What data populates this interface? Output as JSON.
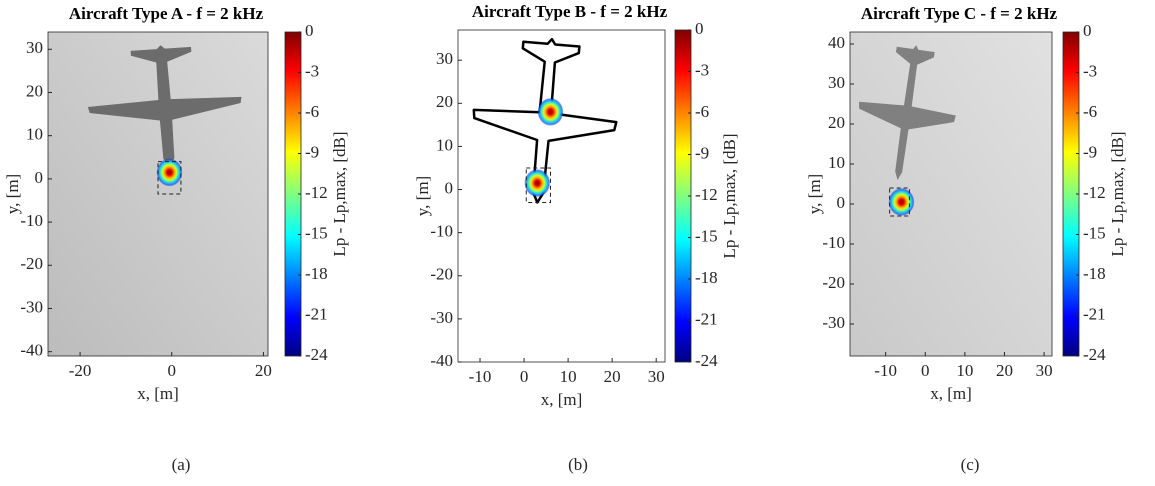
{
  "chart_data": [
    {
      "type": "heatmap",
      "title": "Aircraft Type A - f = 2 kHz",
      "xlabel": "x, [m]",
      "ylabel": "y, [m]",
      "xlim": [
        -27,
        21
      ],
      "ylim": [
        -41,
        34
      ],
      "xticks": [
        -20,
        0,
        20
      ],
      "yticks": [
        -40,
        -30,
        -20,
        -10,
        0,
        10,
        20,
        30
      ],
      "x": [
        -0.5
      ],
      "y": [
        1.5
      ],
      "values": [
        0
      ],
      "box_x": [
        -3,
        2
      ],
      "box_y": [
        -3.5,
        4
      ],
      "colorbar_label": "Lp - Lp,max, [dB]",
      "clim": [
        -24,
        0
      ],
      "cticks": [
        0,
        -3,
        -6,
        -9,
        -12,
        -15,
        -18,
        -21,
        -24
      ],
      "background": "#bcbcbc",
      "caption": "(a)"
    },
    {
      "type": "heatmap",
      "title": "Aircraft Type B - f = 2 kHz",
      "xlabel": "x, [m]",
      "ylabel": "y, [m]",
      "xlim": [
        -15,
        32
      ],
      "ylim": [
        -40,
        37
      ],
      "xticks": [
        -10,
        0,
        10,
        20,
        30
      ],
      "yticks": [
        -40,
        -30,
        -20,
        -10,
        0,
        10,
        20,
        30
      ],
      "x": [
        6,
        3
      ],
      "y": [
        18,
        1.5
      ],
      "values": [
        0,
        0
      ],
      "box_x": [
        0.5,
        6
      ],
      "box_y": [
        -3,
        5
      ],
      "colorbar_label": "Lp - Lp,max, [dB]",
      "clim": [
        -24,
        0
      ],
      "cticks": [
        0,
        -3,
        -6,
        -9,
        -12,
        -15,
        -18,
        -21,
        -24
      ],
      "background": "#ffffff",
      "caption": "(b)"
    },
    {
      "type": "heatmap",
      "title": "Aircraft Type C - f = 2 kHz",
      "xlabel": "x, [m]",
      "ylabel": "y, [m]",
      "xlim": [
        -19,
        32
      ],
      "ylim": [
        -38,
        43
      ],
      "xticks": [
        -10,
        0,
        10,
        20,
        30
      ],
      "yticks": [
        -30,
        -20,
        -10,
        0,
        10,
        20,
        30,
        40
      ],
      "x": [
        -6
      ],
      "y": [
        0.5
      ],
      "values": [
        0
      ],
      "box_x": [
        -9,
        -4
      ],
      "box_y": [
        -3,
        4
      ],
      "colorbar_label": "Lp - Lp,max, [dB]",
      "clim": [
        -24,
        0
      ],
      "cticks": [
        0,
        -3,
        -6,
        -9,
        -12,
        -15,
        -18,
        -21,
        -24
      ],
      "background": "#c9c9c9",
      "caption": "(c)"
    }
  ]
}
